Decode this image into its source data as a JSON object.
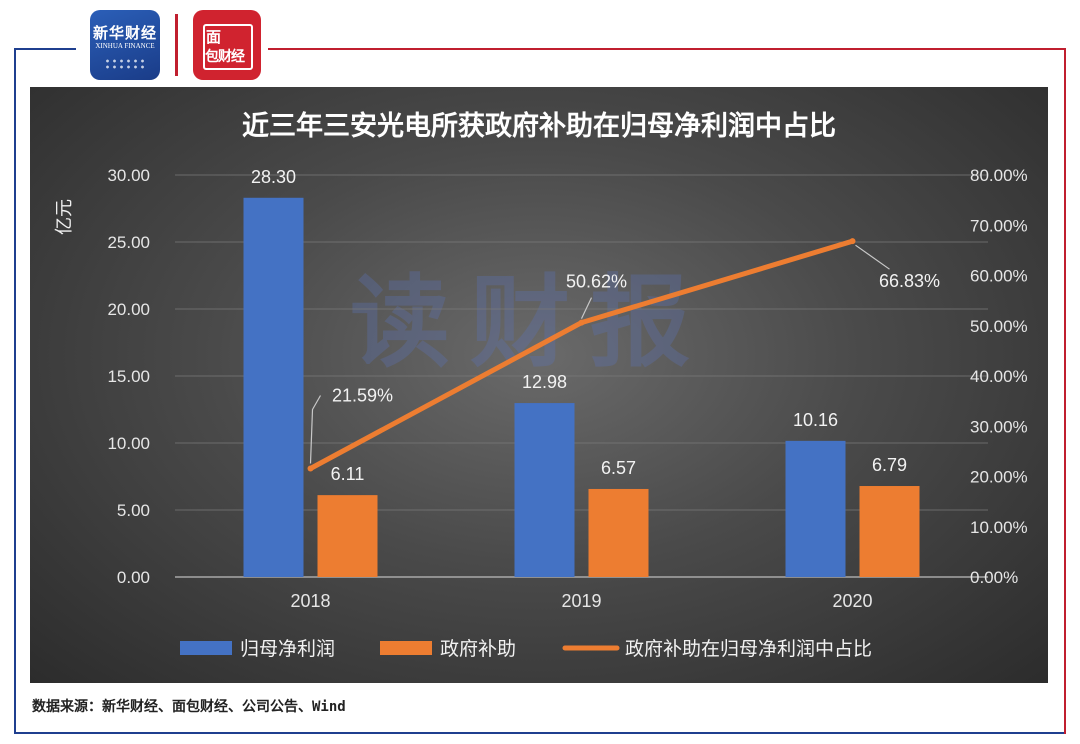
{
  "brand": {
    "xinhua_name": "新华财经",
    "xinhua_english": "XINHUA FINANCE",
    "mianbao_line1": "面",
    "mianbao_line2": "包财经"
  },
  "watermark": "读财报",
  "source_note": "数据来源：新华财经、面包财经、公司公告、Wind",
  "colors": {
    "bar_profit": "#4472c4",
    "bar_subsidy": "#ed7d31",
    "line_ratio": "#ed7d31",
    "frame_blue": "#1f3f8f",
    "frame_red": "#c01f2f"
  },
  "chart_data": {
    "type": "bar",
    "title": "近三年三安光电所获政府补助在归母净利润中占比",
    "ylabel": "亿元",
    "categories": [
      "2018",
      "2019",
      "2020"
    ],
    "ylim": [
      0,
      30
    ],
    "y_ticks": [
      "0.00",
      "5.00",
      "10.00",
      "15.00",
      "20.00",
      "25.00",
      "30.00"
    ],
    "y2lim": [
      0,
      80
    ],
    "y2_ticks": [
      "0.00%",
      "10.00%",
      "20.00%",
      "30.00%",
      "40.00%",
      "50.00%",
      "60.00%",
      "70.00%",
      "80.00%"
    ],
    "series": [
      {
        "name": "归母净利润",
        "type": "bar",
        "values": [
          28.3,
          12.98,
          10.16
        ],
        "labels": [
          "28.30",
          "12.98",
          "10.16"
        ]
      },
      {
        "name": "政府补助",
        "type": "bar",
        "values": [
          6.11,
          6.57,
          6.79
        ],
        "labels": [
          "6.11",
          "6.57",
          "6.79"
        ]
      },
      {
        "name": "政府补助在归母净利润中占比",
        "type": "line",
        "axis": "right",
        "values": [
          21.59,
          50.62,
          66.83
        ],
        "labels": [
          "21.59%",
          "50.62%",
          "66.83%"
        ]
      }
    ],
    "grid": true,
    "legend_position": "bottom"
  }
}
